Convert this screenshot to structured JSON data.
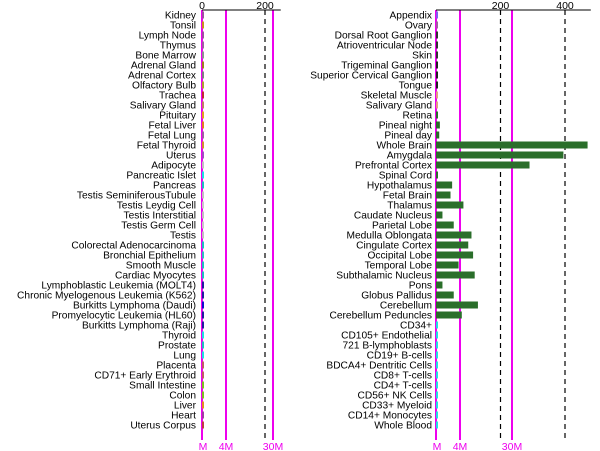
{
  "chart_data": [
    {
      "type": "bar",
      "orientation": "horizontal",
      "panel": "left",
      "categories": [
        "Kidney",
        "Tonsil",
        "Lymph Node",
        "Thymus",
        "Bone Marrow",
        "Adrenal Gland",
        "Adrenal Cortex",
        "Olfactory Bulb",
        "Trachea",
        "Salivary Gland",
        "Pituitary",
        "Fetal Liver",
        "Fetal Lung",
        "Fetal Thyroid",
        "Uterus",
        "Adipocyte",
        "Pancreatic Islet",
        "Pancreas",
        "Testis SeminiferousTubule",
        "Testis Leydig Cell",
        "Testis Interstitial",
        "Testis Germ Cell",
        "Testis",
        "Colorectal Adenocarcinoma",
        "Bronchial Epithelium",
        "Smooth Muscle",
        "Cardiac Myocytes",
        "Lymphoblastic Leukemia (MOLT4)",
        "Chronic Myelogenous Leukemia (K562)",
        "Burkitts Lymphoma (Daudi)",
        "Promyelocytic Leukemia (HL60)",
        "Burkitts Lymphoma (Raji)",
        "Thyroid",
        "Prostate",
        "Lung",
        "Placenta",
        "CD71+ Early Erythroid",
        "Small Intestine",
        "Colon",
        "Liver",
        "Heart",
        "Uterus Corpus"
      ],
      "values": [
        3,
        3,
        3,
        3,
        3,
        3,
        3,
        3,
        3,
        3,
        4,
        3,
        3,
        3,
        3,
        3,
        3,
        3,
        3,
        4,
        3,
        5,
        3,
        3,
        3,
        3,
        3,
        4,
        4,
        5,
        4,
        4,
        3,
        3,
        3,
        3,
        3,
        3,
        3,
        3,
        3,
        3
      ],
      "colors": [
        "#a050a0",
        "#c89020",
        "#a050a0",
        "#a060a0",
        "#909090",
        "#a08020",
        "#808080",
        "#b0a030",
        "#c03030",
        "#c08060",
        "#e0a020",
        "#e08020",
        "#a060a0",
        "#d09030",
        "#a050c0",
        "#c0c0c0",
        "#20e0e0",
        "#20c0c0",
        "#c0c0c0",
        "#c8c8c8",
        "#c0c0c0",
        "#c8c8c8",
        "#c0c0c0",
        "#20c0c0",
        "#30c0c0",
        "#20c0c0",
        "#20c0c0",
        "#20209e",
        "#20209e",
        "#1010cc",
        "#20209e",
        "#20209e",
        "#20e0e0",
        "#20c0c0",
        "#20e0e0",
        "#c06060",
        "#c06060",
        "#80c020",
        "#80c020",
        "#e09020",
        "#a040a0",
        "#c04040"
      ],
      "xlim": [
        0,
        250
      ],
      "x_ticks": [
        "0",
        "200"
      ],
      "ref_lines": [
        "M",
        "4M",
        "30M"
      ],
      "dashed_lines": [
        200
      ]
    },
    {
      "type": "bar",
      "orientation": "horizontal",
      "panel": "right",
      "categories": [
        "Appendix",
        "Ovary",
        "Dorsal Root Ganglion",
        "Atrioventricular Node",
        "Skin",
        "Trigeminal Ganglion",
        "Superior Cervical Ganglion",
        "Tongue",
        "Skeletal Muscle",
        "Salivary Gland",
        "Retina",
        "Pineal night",
        "Pineal day",
        "Whole Brain",
        "Amygdala",
        "Prefrontal Cortex",
        "Spinal Cord",
        "Hypothalamus",
        "Fetal Brain",
        "Thalamus",
        "Caudate Nucleus",
        "Parietal Lobe",
        "Medulla Oblongata",
        "Cingulate Cortex",
        "Occipital Lobe",
        "Temporal Lobe",
        "Subthalamic Nucleus",
        "Pons",
        "Globus Pallidus",
        "Cerebellum",
        "Cerebellum Peduncles",
        "CD34+",
        "CD105+ Endothelial",
        "721 B-lymphoblasts",
        "CD19+ B-cells",
        "BDCA4+ Dentritic Cells",
        "CD8+ T-cells",
        "CD4+ T-cells",
        "CD56+ NK Cells",
        "CD33+ Myeloid",
        "CD14+ Monocytes",
        "Whole Blood"
      ],
      "values": [
        4,
        3,
        3,
        3,
        3,
        4,
        5,
        4,
        2,
        2,
        5,
        12,
        10,
        470,
        395,
        290,
        5,
        50,
        45,
        85,
        20,
        55,
        110,
        100,
        115,
        70,
        120,
        20,
        55,
        130,
        80,
        2,
        2,
        2,
        2,
        2,
        2,
        2,
        2,
        2,
        2,
        2
      ],
      "colors": [
        "#8060ee",
        "#a060a0",
        "#303030",
        "#303030",
        "#303030",
        "#202020",
        "#202020",
        "#202020",
        "#e0a080",
        "#e0a080",
        "#2a6e2a",
        "#2a6e2a",
        "#2a6e2a",
        "#2a6e2a",
        "#2a6e2a",
        "#2a6e2a",
        "#2a6e2a",
        "#2a6e2a",
        "#2a6e2a",
        "#2a6e2a",
        "#2a6e2a",
        "#2a6e2a",
        "#2a6e2a",
        "#2a6e2a",
        "#2a6e2a",
        "#2a6e2a",
        "#2a6e2a",
        "#2a6e2a",
        "#2a6e2a",
        "#2a6e2a",
        "#2a6e2a",
        "#20e0e0",
        "#20e0e0",
        "#20e0e0",
        "#20e0e0",
        "#20e0e0",
        "#20e0e0",
        "#20e0e0",
        "#20e0e0",
        "#20e0e0",
        "#20e0e0",
        "#20e0e0"
      ],
      "xlim": [
        0,
        480
      ],
      "x_ticks": [
        "200",
        "400"
      ],
      "ref_lines": [
        "M",
        "4M",
        "30M"
      ],
      "dashed_lines": [
        200,
        400
      ]
    }
  ]
}
